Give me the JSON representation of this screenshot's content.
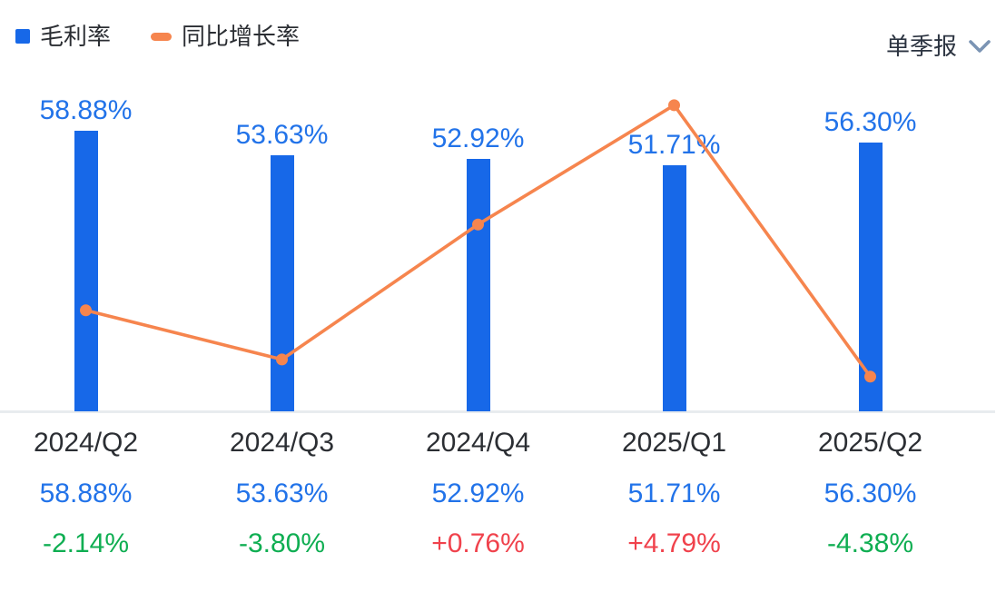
{
  "legend": {
    "items": [
      {
        "label": "毛利率",
        "color": "#1768E8",
        "swatch": "square"
      },
      {
        "label": "同比增长率",
        "color": "#F6854E",
        "swatch": "line"
      }
    ]
  },
  "period_selector": {
    "label": "单季报",
    "icon": "chevron-down-icon"
  },
  "colors": {
    "bar": "#1768E8",
    "bar_label": "#2273E9",
    "line": "#F6854E",
    "axis_line": "#E8ECEF",
    "dark_text": "#2B2E33",
    "positive_change": "#F0424C",
    "negative_change": "#0FAE52",
    "chevron": "#7B94B4"
  },
  "chart_data": {
    "type": "combo",
    "categories": [
      "2024/Q2",
      "2024/Q3",
      "2024/Q4",
      "2025/Q1",
      "2025/Q2"
    ],
    "series": [
      {
        "name": "毛利率",
        "type": "bar",
        "unit": "%",
        "values": [
          58.88,
          53.63,
          52.92,
          51.71,
          56.3
        ],
        "labels": [
          "58.88%",
          "53.63%",
          "52.92%",
          "51.71%",
          "56.30%"
        ],
        "color": "#1768E8"
      },
      {
        "name": "同比增长率",
        "type": "line",
        "unit": "%",
        "values": [
          -2.14,
          -3.8,
          0.76,
          4.79,
          -4.38
        ],
        "labels": [
          "-2.14%",
          "-3.80%",
          "+0.76%",
          "+4.79%",
          "-4.38%"
        ],
        "color": "#F6854E"
      }
    ],
    "title": "",
    "xlabel": "",
    "ylabel": "",
    "legend_position": "top-left",
    "grid": false,
    "y_axis_visible": false,
    "bar_axis_range": [
      0,
      86
    ],
    "line_axis_range": [
      -8.3,
      8.3
    ]
  },
  "table": {
    "rows": [
      {
        "name": "quarter",
        "values": [
          "2024/Q2",
          "2024/Q3",
          "2024/Q4",
          "2025/Q1",
          "2025/Q2"
        ]
      },
      {
        "name": "gross_margin",
        "values": [
          "58.88%",
          "53.63%",
          "52.92%",
          "51.71%",
          "56.30%"
        ]
      },
      {
        "name": "yoy_change",
        "values": [
          "-2.14%",
          "-3.80%",
          "+0.76%",
          "+4.79%",
          "-4.38%"
        ],
        "signs": [
          "neg",
          "neg",
          "pos",
          "pos",
          "neg"
        ]
      }
    ]
  }
}
